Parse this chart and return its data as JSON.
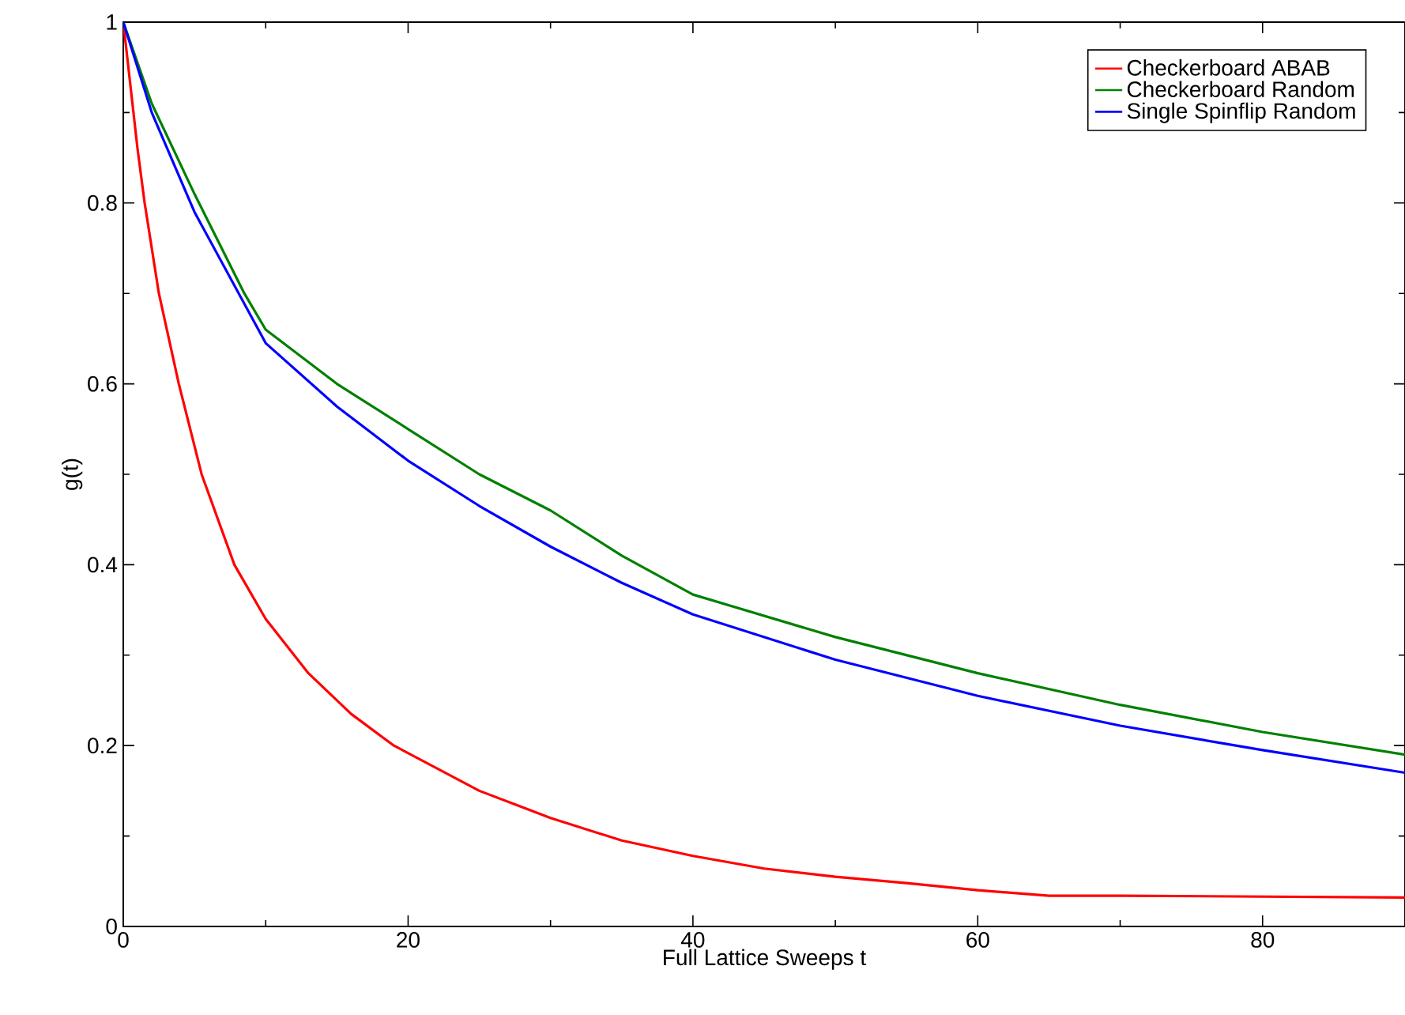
{
  "chart_data": {
    "type": "line",
    "xlabel": "Full Lattice Sweeps t",
    "ylabel": "g(t)",
    "xlim": [
      0,
      90
    ],
    "ylim": [
      0,
      1
    ],
    "xticks": [
      0,
      20,
      40,
      60,
      80
    ],
    "yticks": [
      0,
      0.2,
      0.4,
      0.6,
      0.8,
      1
    ],
    "legend": "top right",
    "grid": false,
    "marker": "none",
    "line_style": "solid",
    "series": [
      {
        "name": "Checkerboard ABAB",
        "color": "#ff0000",
        "x": [
          0,
          1,
          1.5,
          2.5,
          3.9,
          5.5,
          7.8,
          10,
          13,
          16,
          19,
          25,
          30,
          35,
          40,
          45,
          50,
          55,
          60,
          65,
          70,
          80,
          90
        ],
        "values": [
          1,
          0.86,
          0.8,
          0.7,
          0.6,
          0.5,
          0.4,
          0.34,
          0.28,
          0.235,
          0.2,
          0.15,
          0.12,
          0.095,
          0.078,
          0.064,
          0.055,
          0.048,
          0.04,
          0.034,
          0.034,
          0.033,
          0.032
        ]
      },
      {
        "name": "Checkerboard Random",
        "color": "#008000",
        "x": [
          0,
          2,
          5,
          8.5,
          10,
          15,
          20,
          25,
          30,
          35,
          40,
          50,
          60,
          70,
          80,
          90
        ],
        "values": [
          1,
          0.91,
          0.81,
          0.7,
          0.66,
          0.6,
          0.55,
          0.5,
          0.46,
          0.41,
          0.367,
          0.32,
          0.28,
          0.245,
          0.215,
          0.19
        ]
      },
      {
        "name": "Single Spinflip Random",
        "color": "#0000ff",
        "x": [
          0,
          2,
          5,
          10,
          15,
          20,
          25,
          30,
          35,
          40,
          50,
          60,
          70,
          80,
          90
        ],
        "values": [
          1,
          0.9,
          0.79,
          0.645,
          0.575,
          0.515,
          0.465,
          0.42,
          0.38,
          0.345,
          0.295,
          0.255,
          0.222,
          0.195,
          0.17
        ]
      }
    ]
  }
}
